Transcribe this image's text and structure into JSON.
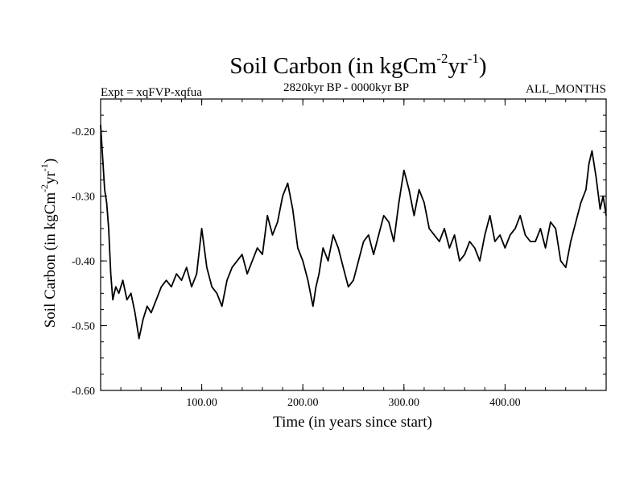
{
  "chart_data": {
    "type": "line",
    "title": {
      "main": "Soil Carbon (in kgCm",
      "exp1": "-2",
      "mid": "yr",
      "exp2": "-1",
      "end": ")"
    },
    "subtitle_left": "Expt = xqFVP-xqfua",
    "subtitle_center": "2820kyr BP - 0000kyr BP",
    "subtitle_right": "ALL_MONTHS",
    "xlabel": "Time (in years since start)",
    "ylabel": {
      "main": "Soil Carbon (in kgCm",
      "exp1": "-2",
      "mid": "yr",
      "exp2": "-1",
      "end": ")"
    },
    "xlim": [
      0,
      500
    ],
    "ylim": [
      -0.6,
      -0.15
    ],
    "x_ticks": [
      100,
      200,
      300,
      400
    ],
    "x_tick_labels": [
      "100.00",
      "200.00",
      "300.00",
      "400.00"
    ],
    "y_ticks": [
      -0.6,
      -0.5,
      -0.4,
      -0.3,
      -0.2
    ],
    "y_tick_labels": [
      "-0.60",
      "-0.50",
      "-0.40",
      "-0.30",
      "-0.20"
    ],
    "x_minor_step": 20,
    "y_minor_step": 0.025,
    "series": [
      {
        "name": "Soil Carbon",
        "x": [
          0,
          2,
          4,
          6,
          8,
          10,
          12,
          15,
          18,
          22,
          26,
          30,
          34,
          38,
          42,
          46,
          50,
          55,
          60,
          65,
          70,
          75,
          80,
          85,
          90,
          95,
          100,
          105,
          110,
          115,
          120,
          125,
          130,
          135,
          140,
          145,
          150,
          155,
          160,
          165,
          170,
          175,
          180,
          185,
          190,
          195,
          200,
          205,
          210,
          213,
          216,
          220,
          225,
          230,
          235,
          240,
          245,
          250,
          255,
          260,
          265,
          270,
          275,
          280,
          285,
          290,
          295,
          300,
          305,
          310,
          315,
          320,
          325,
          330,
          335,
          340,
          345,
          350,
          355,
          360,
          365,
          370,
          375,
          380,
          385,
          390,
          395,
          400,
          405,
          410,
          415,
          420,
          425,
          430,
          435,
          440,
          445,
          450,
          455,
          460,
          465,
          470,
          475,
          480,
          483,
          486,
          490,
          494,
          497,
          500
        ],
        "values": [
          -0.19,
          -0.24,
          -0.29,
          -0.31,
          -0.35,
          -0.42,
          -0.46,
          -0.44,
          -0.45,
          -0.43,
          -0.46,
          -0.45,
          -0.48,
          -0.52,
          -0.49,
          -0.47,
          -0.48,
          -0.46,
          -0.44,
          -0.43,
          -0.44,
          -0.42,
          -0.43,
          -0.41,
          -0.44,
          -0.42,
          -0.35,
          -0.41,
          -0.44,
          -0.45,
          -0.47,
          -0.43,
          -0.41,
          -0.4,
          -0.39,
          -0.42,
          -0.4,
          -0.38,
          -0.39,
          -0.33,
          -0.36,
          -0.34,
          -0.3,
          -0.28,
          -0.32,
          -0.38,
          -0.4,
          -0.43,
          -0.47,
          -0.44,
          -0.42,
          -0.38,
          -0.4,
          -0.36,
          -0.38,
          -0.41,
          -0.44,
          -0.43,
          -0.4,
          -0.37,
          -0.36,
          -0.39,
          -0.36,
          -0.33,
          -0.34,
          -0.37,
          -0.31,
          -0.26,
          -0.29,
          -0.33,
          -0.29,
          -0.31,
          -0.35,
          -0.36,
          -0.37,
          -0.35,
          -0.38,
          -0.36,
          -0.4,
          -0.39,
          -0.37,
          -0.38,
          -0.4,
          -0.36,
          -0.33,
          -0.37,
          -0.36,
          -0.38,
          -0.36,
          -0.35,
          -0.33,
          -0.36,
          -0.37,
          -0.37,
          -0.35,
          -0.38,
          -0.34,
          -0.35,
          -0.4,
          -0.41,
          -0.37,
          -0.34,
          -0.31,
          -0.29,
          -0.25,
          -0.23,
          -0.27,
          -0.32,
          -0.3,
          -0.33
        ]
      }
    ]
  }
}
